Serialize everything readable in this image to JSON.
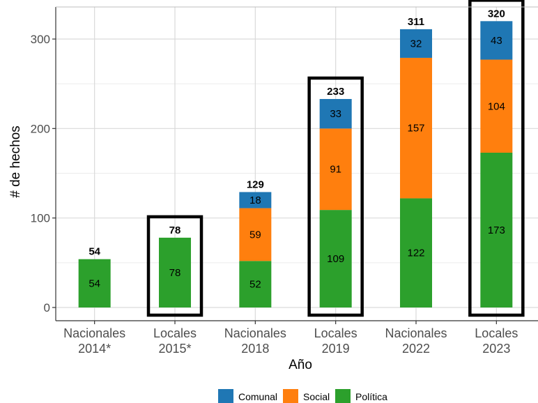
{
  "chart_data": {
    "type": "bar",
    "stacked": true,
    "xlabel": "Año",
    "ylabel": "# de hechos",
    "ylim": [
      -14,
      335
    ],
    "yticks": [
      0,
      100,
      200,
      300
    ],
    "grid": true,
    "legend_position": "bottom",
    "categories": [
      {
        "line1": "Nacionales",
        "line2": "2014*"
      },
      {
        "line1": "Locales",
        "line2": "2015*"
      },
      {
        "line1": "Nacionales",
        "line2": "2018"
      },
      {
        "line1": "Locales",
        "line2": "2019"
      },
      {
        "line1": "Nacionales",
        "line2": "2022"
      },
      {
        "line1": "Locales",
        "line2": "2023"
      }
    ],
    "series": [
      {
        "name": "Política",
        "color": "#2ca02c",
        "values": [
          54,
          78,
          52,
          109,
          122,
          173
        ]
      },
      {
        "name": "Social",
        "color": "#ff7f0e",
        "values": [
          0,
          0,
          59,
          91,
          157,
          104
        ]
      },
      {
        "name": "Comunal",
        "color": "#1f77b4",
        "values": [
          0,
          0,
          18,
          33,
          32,
          43
        ]
      }
    ],
    "totals": [
      54,
      78,
      129,
      233,
      311,
      320
    ],
    "highlighted": [
      false,
      true,
      false,
      true,
      false,
      true
    ],
    "legend_order": [
      "Comunal",
      "Social",
      "Política"
    ]
  }
}
